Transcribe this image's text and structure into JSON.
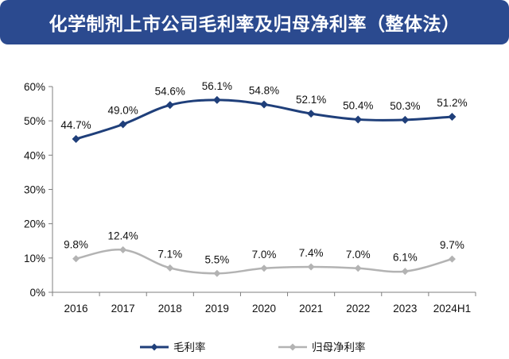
{
  "title": "化学制剂上市公司毛利率及归母净利率（整体法）",
  "colors": {
    "banner": "#2b4a8f",
    "gross_margin": "#1f3f7a",
    "net_margin": "#b3b3b3",
    "axis": "#7f7f7f"
  },
  "chart_data": {
    "type": "line",
    "categories": [
      "2016",
      "2017",
      "2018",
      "2019",
      "2020",
      "2021",
      "2022",
      "2023",
      "2024H1"
    ],
    "ylim": [
      0,
      60
    ],
    "yticks": [
      "0%",
      "10%",
      "20%",
      "30%",
      "40%",
      "50%",
      "60%"
    ],
    "grid": false,
    "legend_position": "bottom",
    "series": [
      {
        "name": "毛利率",
        "values": [
          44.7,
          49.0,
          54.6,
          56.1,
          54.8,
          52.1,
          50.4,
          50.3,
          51.2
        ],
        "labels": [
          "44.7%",
          "49.0%",
          "54.6%",
          "56.1%",
          "54.8%",
          "52.1%",
          "50.4%",
          "50.3%",
          "51.2%"
        ]
      },
      {
        "name": "归母净利率",
        "values": [
          9.8,
          12.4,
          7.1,
          5.5,
          7.0,
          7.4,
          7.0,
          6.1,
          9.7
        ],
        "labels": [
          "9.8%",
          "12.4%",
          "7.1%",
          "5.5%",
          "7.0%",
          "7.4%",
          "7.0%",
          "6.1%",
          "9.7%"
        ]
      }
    ]
  }
}
